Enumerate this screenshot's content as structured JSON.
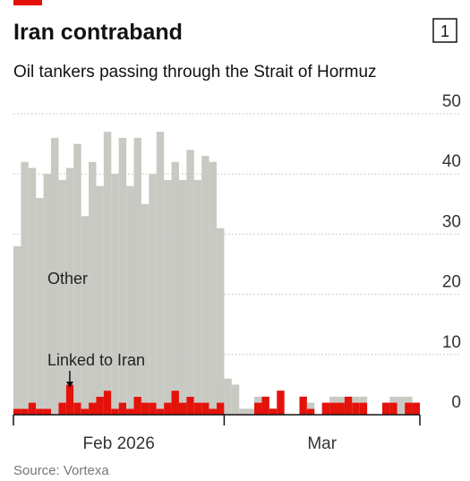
{
  "chart_data": {
    "type": "stacked_bar",
    "title": "Iran contraband",
    "chart_number": "1",
    "subtitle": "Oil tankers passing through the Strait of Hormuz",
    "source": "Source: Vortexa",
    "x": [
      0,
      1,
      2,
      3,
      4,
      5,
      6,
      7,
      8,
      9,
      10,
      11,
      12,
      13,
      14,
      15,
      16,
      17,
      18,
      19,
      20,
      21,
      22,
      23,
      24,
      25,
      26,
      27,
      28,
      29,
      30,
      31,
      32,
      33,
      34,
      35,
      36,
      37,
      38,
      39,
      40,
      41,
      42,
      43,
      44,
      45,
      46,
      47,
      48,
      49,
      50,
      51,
      52,
      53
    ],
    "xlim": [
      0,
      54
    ],
    "xticks": [
      0,
      28,
      54
    ],
    "xtick_labels": [
      {
        "value": 14,
        "label": "Feb 2026"
      },
      {
        "value": 41,
        "label": "Mar"
      }
    ],
    "ylim": [
      0,
      50
    ],
    "yticks": [
      0,
      10,
      20,
      30,
      40,
      50
    ],
    "grid": true,
    "series": [
      {
        "name": "Linked to Iran",
        "color": "#e3120b",
        "values": [
          1,
          1,
          2,
          1,
          1,
          0,
          2,
          5,
          2,
          1,
          2,
          3,
          4,
          1,
          2,
          1,
          3,
          2,
          2,
          1,
          2,
          4,
          2,
          3,
          2,
          2,
          1,
          2,
          0,
          0,
          0,
          0,
          2,
          3,
          1,
          4,
          0,
          0,
          3,
          1,
          0,
          2,
          2,
          2,
          3,
          2,
          2,
          0,
          0,
          2,
          2,
          0,
          2,
          2
        ]
      },
      {
        "name": "Other",
        "color": "#c9c9c3",
        "values": [
          27,
          41,
          39,
          35,
          39,
          46,
          37,
          36,
          43,
          32,
          40,
          35,
          43,
          39,
          44,
          37,
          43,
          33,
          38,
          46,
          37,
          38,
          37,
          41,
          37,
          41,
          41,
          29,
          6,
          5,
          1,
          1,
          1,
          0,
          0,
          0,
          0,
          0,
          0,
          1,
          0,
          0,
          1,
          1,
          0,
          1,
          1,
          0,
          0,
          0,
          1,
          3,
          1,
          0
        ]
      }
    ]
  }
}
